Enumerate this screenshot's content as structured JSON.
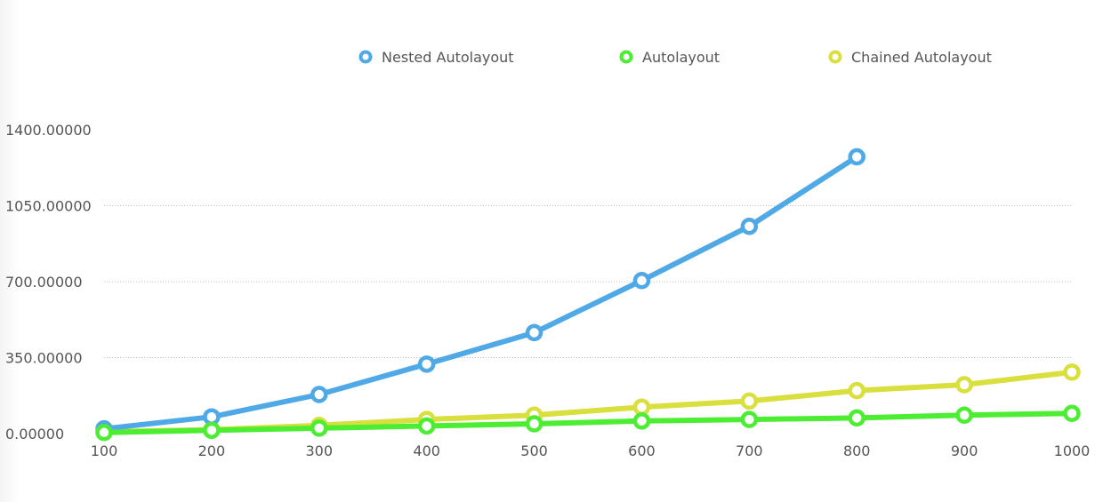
{
  "chart_data": {
    "type": "line",
    "title": "",
    "xlabel": "",
    "ylabel": "",
    "x": [
      100,
      200,
      300,
      400,
      500,
      600,
      700,
      800,
      900,
      1000
    ],
    "x_tick_labels": [
      "100",
      "200",
      "300",
      "400",
      "500",
      "600",
      "700",
      "800",
      "900",
      "1000"
    ],
    "y_tick_labels": [
      "0.00000",
      "350.00000",
      "700.00000",
      "1050.00000",
      "1400.00000"
    ],
    "y_ticks": [
      0,
      350,
      700,
      1050,
      1400
    ],
    "ylim": [
      0,
      1400
    ],
    "grid": true,
    "legend_position": "top",
    "series": [
      {
        "name": "Nested Autolayout",
        "color": "#4fa9e6",
        "values": [
          22,
          77,
          180,
          320,
          465,
          705,
          955,
          1275,
          null,
          null
        ]
      },
      {
        "name": "Autolayout",
        "color": "#4ded34",
        "values": [
          5,
          15,
          25,
          35,
          45,
          58,
          65,
          72,
          85,
          93
        ]
      },
      {
        "name": "Chained Autolayout",
        "color": "#d9df3c",
        "values": [
          8,
          18,
          38,
          65,
          85,
          122,
          150,
          198,
          225,
          283
        ]
      }
    ]
  }
}
